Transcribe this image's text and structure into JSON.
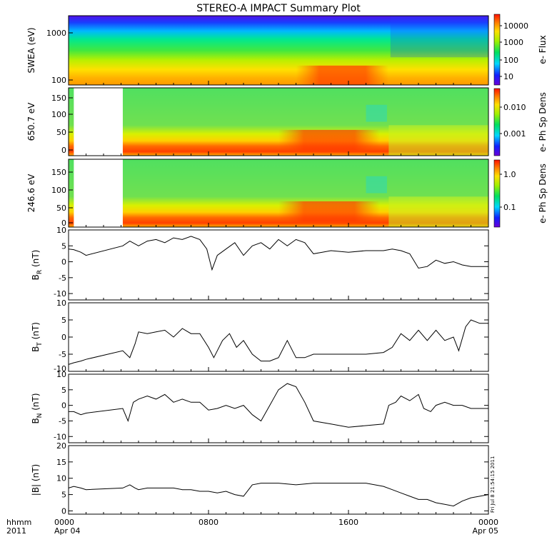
{
  "chart_data": {
    "type": "line",
    "title": "STEREO-A IMPACT Summary Plot",
    "x_axis": {
      "range_hours": [
        0,
        24
      ],
      "ticks": [
        {
          "hour": 0,
          "line1": "0000",
          "line2": "Apr 04"
        },
        {
          "hour": 8,
          "line1": "0800",
          "line2": ""
        },
        {
          "hour": 16,
          "line1": "1600",
          "line2": ""
        },
        {
          "hour": 24,
          "line1": "0000",
          "line2": "Apr 05"
        }
      ],
      "corner_line1": "hhmm",
      "corner_line2": "2011"
    },
    "gaps_hours": [
      [
        0.3,
        3.1
      ]
    ],
    "spectrograms": [
      {
        "ylabel": "SWEA (eV)",
        "yscale": "log",
        "ylim": [
          90,
          2000
        ],
        "yticks": [
          "1000",
          "100"
        ],
        "colorbar_label": "e- Flux",
        "colorbar_ticks": [
          "10000",
          "1000",
          "100",
          "10"
        ]
      },
      {
        "ylabel": "650.7 eV",
        "yscale": "linear",
        "ylim": [
          -10,
          180
        ],
        "yticks": [
          "150",
          "100",
          "50",
          "0"
        ],
        "colorbar_label": "e- Ph Sp Dens",
        "colorbar_ticks": [
          "0.010",
          "0.001"
        ]
      },
      {
        "ylabel": "246.6 eV",
        "yscale": "linear",
        "ylim": [
          -10,
          180
        ],
        "yticks": [
          "150",
          "100",
          "50",
          "0"
        ],
        "colorbar_label": "e- Ph Sp Dens",
        "colorbar_ticks": [
          "1.0",
          "0.1"
        ]
      }
    ],
    "line_panels": [
      {
        "label": "B",
        "sub": "R",
        "unit": " (nT)",
        "ylim": [
          -12,
          10
        ],
        "yticks": [
          10,
          5,
          0,
          -5,
          -10
        ],
        "t": [
          0,
          0.3,
          0.7,
          1,
          3.1,
          3.5,
          4,
          4.5,
          5,
          5.5,
          6,
          6.5,
          7,
          7.5,
          7.9,
          8.2,
          8.5,
          9,
          9.5,
          10,
          10.5,
          11,
          11.5,
          12,
          12.5,
          13,
          13.5,
          14,
          14.5,
          15,
          16,
          17,
          18,
          18.5,
          19,
          19.5,
          20,
          20.5,
          21,
          21.5,
          22,
          22.5,
          23,
          23.5,
          24
        ],
        "v": [
          4,
          3.8,
          3,
          2,
          5,
          6.5,
          5,
          6.5,
          7,
          6,
          7.5,
          7,
          8,
          7,
          4,
          -2.5,
          2,
          4,
          6,
          2,
          5,
          6,
          4,
          7,
          5,
          7,
          6,
          2.5,
          3,
          3.5,
          3,
          3.5,
          3.5,
          4,
          3.5,
          2.5,
          -2,
          -1.5,
          0.5,
          -0.5,
          0,
          -1,
          -1.5,
          -1.5,
          -1.5
        ]
      },
      {
        "label": "B",
        "sub": "T",
        "unit": " (nT)",
        "ylim": [
          -10,
          10
        ],
        "yticks": [
          10,
          5,
          0,
          -5
        ],
        "extra_tick_labels": [
          "-10"
        ],
        "t": [
          0,
          0.3,
          0.7,
          1,
          3.1,
          3.5,
          3.8,
          4,
          4.5,
          5,
          5.5,
          6,
          6.5,
          7,
          7.5,
          8,
          8.3,
          8.8,
          9.2,
          9.6,
          10,
          10.5,
          11,
          11.5,
          12,
          12.5,
          13,
          13.5,
          14,
          15,
          16,
          17,
          18,
          18.5,
          19,
          19.5,
          20,
          20.5,
          21,
          21.5,
          22,
          22.3,
          22.7,
          23,
          23.5,
          24
        ],
        "v": [
          -8,
          -7.5,
          -7,
          -6.5,
          -4,
          -6,
          -2,
          1.5,
          1,
          1.5,
          2,
          0,
          2.5,
          1,
          1,
          -3,
          -6,
          -1,
          1,
          -3,
          -1,
          -5,
          -7,
          -7,
          -6,
          -1,
          -6,
          -6,
          -5,
          -5,
          -5,
          -5,
          -4.5,
          -3,
          1,
          -1,
          2,
          -1,
          2,
          -1,
          0,
          -4,
          3,
          5,
          4,
          4
        ]
      },
      {
        "label": "B",
        "sub": "N",
        "unit": " (nT)",
        "ylim": [
          -12,
          10
        ],
        "yticks": [
          10,
          5,
          0,
          -5,
          -10
        ],
        "t": [
          0,
          0.3,
          0.7,
          1,
          3.1,
          3.4,
          3.7,
          4,
          4.5,
          5,
          5.5,
          6,
          6.5,
          7,
          7.5,
          8,
          8.5,
          9,
          9.5,
          10,
          10.5,
          11,
          11.5,
          12,
          12.5,
          13,
          13.5,
          14,
          15,
          16,
          17,
          18,
          18.3,
          18.7,
          19,
          19.5,
          20,
          20.3,
          20.7,
          21,
          21.5,
          22,
          22.5,
          23,
          23.5,
          24
        ],
        "v": [
          -2,
          -2,
          -3,
          -2.5,
          -1,
          -5,
          1,
          2,
          3,
          2,
          3.5,
          1,
          2,
          1,
          1,
          -1.5,
          -1,
          0,
          -1,
          0,
          -3,
          -5,
          0,
          5,
          7,
          6,
          1,
          -5,
          -6,
          -7,
          -6.5,
          -6,
          0,
          1,
          3,
          1.5,
          3.5,
          -1,
          -2,
          0,
          1,
          0,
          0,
          -1,
          -1,
          -1
        ]
      },
      {
        "label": "|B|",
        "sub": "",
        "unit": " (nT)",
        "ylim": [
          -1,
          20
        ],
        "yticks": [
          20,
          15,
          10,
          5,
          0
        ],
        "t": [
          0,
          0.3,
          0.7,
          1,
          3.1,
          3.5,
          3.8,
          4,
          4.5,
          5,
          5.5,
          6,
          6.5,
          7,
          7.5,
          8,
          8.5,
          9,
          9.5,
          10,
          10.5,
          11,
          12,
          13,
          14,
          15,
          16,
          17,
          18,
          18.5,
          19,
          19.5,
          20,
          20.5,
          21,
          21.5,
          22,
          22.5,
          23,
          23.5,
          24
        ],
        "v": [
          7,
          7.5,
          7,
          6.5,
          7,
          8,
          7,
          6.5,
          7,
          7,
          7,
          7,
          6.5,
          6.5,
          6,
          6,
          5.5,
          6,
          5,
          4.5,
          8,
          8.5,
          8.5,
          8,
          8.5,
          8.5,
          8.5,
          8.5,
          7.5,
          6.5,
          5.5,
          4.5,
          3.5,
          3.5,
          2.5,
          2,
          1.5,
          3,
          4,
          4.5,
          5
        ]
      }
    ],
    "side_stamp": "Fri Jul  8 21:54:15 2011"
  }
}
